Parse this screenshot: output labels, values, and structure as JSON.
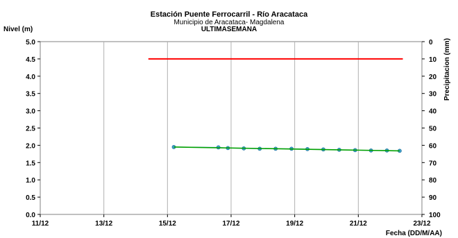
{
  "chart_data": {
    "type": "line",
    "title": "Estación Puente Ferrocarril - Río Aracataca",
    "subtitle": "Municipio de Aracataca- Magdalena",
    "subtitle2": "ULTIMASEMANA",
    "ylabel": "Nivel (m)",
    "y2label": "Precipitacion (mm)",
    "xlabel": "Fecha (DD/M/AA)",
    "x_ticks": [
      "11/12",
      "13/12",
      "15/12",
      "17/12",
      "19/12",
      "21/12",
      "23/12"
    ],
    "x_range_days": [
      11,
      23
    ],
    "y_ticks": [
      "0.0",
      "0.5",
      "1.0",
      "1.5",
      "2.0",
      "2.5",
      "3.0",
      "3.5",
      "4.0",
      "4.5",
      "5.0"
    ],
    "ylim": [
      0,
      5
    ],
    "y2_ticks": [
      "0",
      "10",
      "20",
      "30",
      "40",
      "50",
      "60",
      "70",
      "80",
      "90",
      "100"
    ],
    "y2lim": [
      0,
      100
    ],
    "y2_inverted": true,
    "grid": "vertical",
    "series": [
      {
        "role": "threshold",
        "color": "#ff0000",
        "x": [
          14.4,
          22.4
        ],
        "y": [
          4.5,
          4.5
        ]
      },
      {
        "role": "level",
        "color": "#3fa0c8",
        "x": [
          15.2,
          16.6,
          16.9,
          17.4,
          17.9,
          18.4,
          18.9,
          19.4,
          19.9,
          20.4,
          20.9,
          21.4,
          21.9,
          22.3
        ],
        "y": [
          1.95,
          1.94,
          1.92,
          1.91,
          1.9,
          1.9,
          1.9,
          1.89,
          1.88,
          1.87,
          1.86,
          1.85,
          1.85,
          1.84
        ]
      },
      {
        "role": "trend",
        "color": "#00a000",
        "x": [
          15.2,
          22.3
        ],
        "y": [
          1.95,
          1.84
        ]
      }
    ]
  }
}
